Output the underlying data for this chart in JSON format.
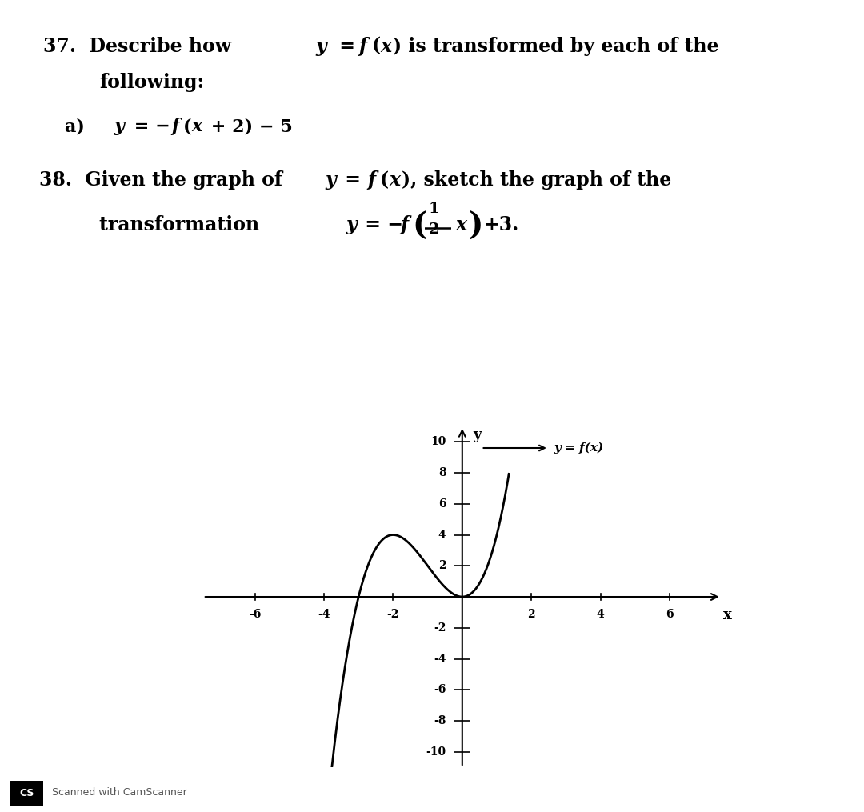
{
  "xlim": [
    -7.5,
    7.5
  ],
  "ylim": [
    -11,
    11
  ],
  "xticks": [
    -6,
    -4,
    -2,
    2,
    4,
    6
  ],
  "yticks": [
    -10,
    -8,
    -6,
    -4,
    -2,
    2,
    4,
    6,
    8,
    10
  ],
  "curve_color": "#000000",
  "background_color": "#ffffff",
  "label_y_eq_fx": "y = f(x)",
  "watermark_cs": "CS",
  "watermark_text": "Scanned with CamScanner"
}
